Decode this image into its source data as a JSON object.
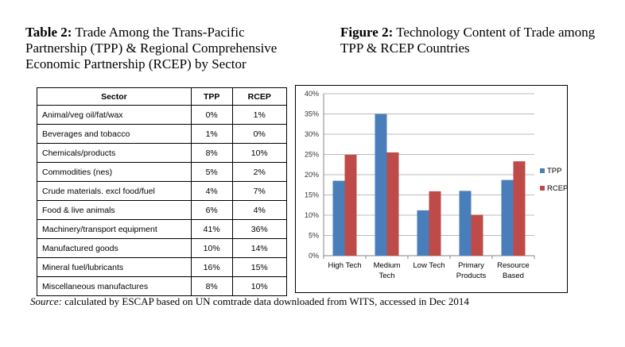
{
  "table_caption": {
    "label": "Table 2:",
    "text": "Trade Among the Trans-Pacific Partnership (TPP) & Regional Comprehensive Economic Partnership (RCEP) by Sector"
  },
  "figure_caption": {
    "label": "Figure 2:",
    "text": "Technology Content of Trade among TPP & RCEP Countries"
  },
  "table": {
    "headers": [
      "Sector",
      "TPP",
      "RCEP"
    ],
    "rows": [
      [
        "Animal/veg oil/fat/wax",
        "0%",
        "1%"
      ],
      [
        "Beverages and tobacco",
        "1%",
        "0%"
      ],
      [
        "Chemicals/products",
        "8%",
        "10%"
      ],
      [
        "Commodities (nes)",
        "5%",
        "2%"
      ],
      [
        "Crude materials. excl food/fuel",
        "4%",
        "7%"
      ],
      [
        "Food & live animals",
        "6%",
        "4%"
      ],
      [
        "Machinery/transport equipment",
        "41%",
        "36%"
      ],
      [
        "Manufactured goods",
        "10%",
        "14%"
      ],
      [
        "Mineral fuel/lubricants",
        "16%",
        "15%"
      ],
      [
        "Miscellaneous manufactures",
        "8%",
        "10%"
      ]
    ]
  },
  "chart_data": {
    "type": "bar",
    "title": "",
    "xlabel": "",
    "ylabel": "",
    "categories": [
      [
        "High Tech"
      ],
      [
        "Medium",
        "Tech"
      ],
      [
        "Low Tech"
      ],
      [
        "Primary",
        "Products"
      ],
      [
        "Resource",
        "Based"
      ]
    ],
    "series": [
      {
        "name": "TPP",
        "color": "#4a7ebb",
        "values": [
          18.5,
          35.0,
          11.2,
          16.0,
          18.7
        ]
      },
      {
        "name": "RCEP",
        "color": "#be4b48",
        "values": [
          24.9,
          25.5,
          15.9,
          10.1,
          23.3
        ]
      }
    ],
    "ylim": [
      0,
      40
    ],
    "yticks": [
      "0%",
      "5%",
      "10%",
      "15%",
      "20%",
      "25%",
      "30%",
      "35%",
      "40%"
    ],
    "grid": true,
    "legend_position": "right"
  },
  "source": {
    "label": "Source:",
    "text": "calculated by ESCAP based on UN comtrade data downloaded from WITS, accessed in Dec 2014"
  }
}
